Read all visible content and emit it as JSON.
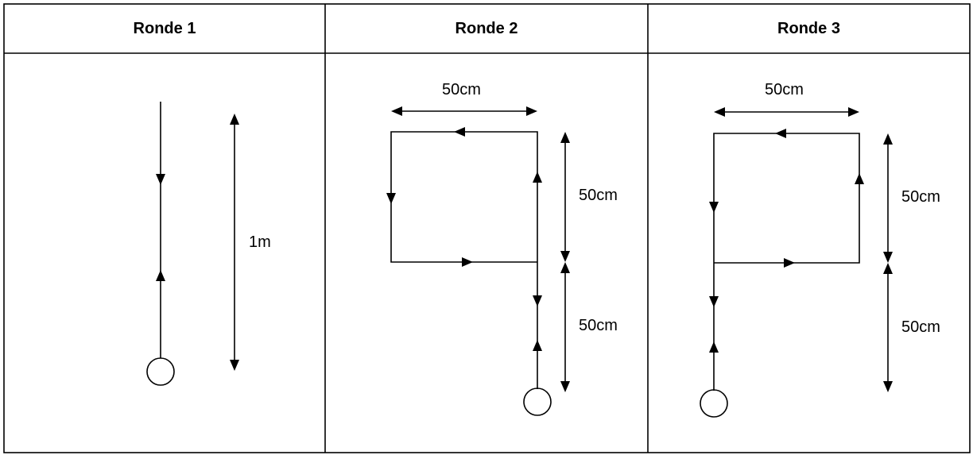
{
  "table": {
    "headers": [
      "Ronde 1",
      "Ronde 2",
      "Ronde 3"
    ]
  },
  "round1": {
    "length_label": "1m"
  },
  "round2": {
    "width_label": "50cm",
    "upper_label": "50cm",
    "lower_label": "50cm"
  },
  "round3": {
    "width_label": "50cm",
    "upper_label": "50cm",
    "lower_label": "50cm"
  },
  "colors": {
    "line": "#000000",
    "background": "#ffffff"
  }
}
